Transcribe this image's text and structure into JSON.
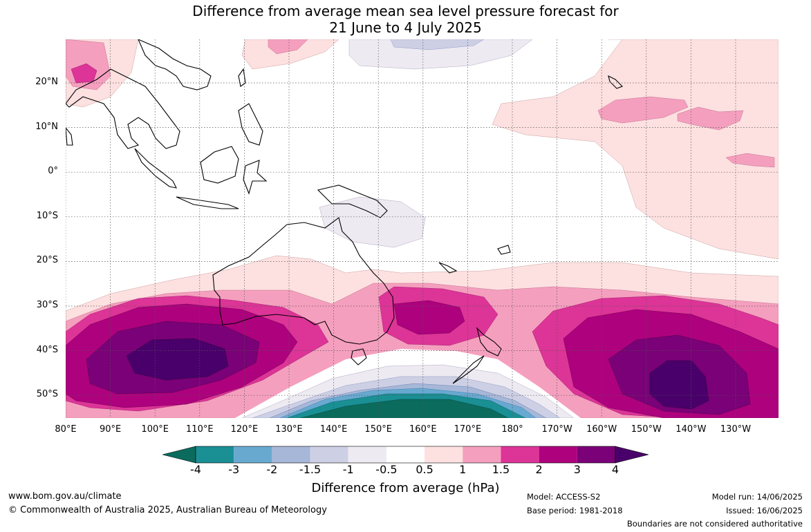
{
  "title": {
    "line1": "Difference from average mean sea level pressure forecast for",
    "line2": "21 June to 4 July 2025"
  },
  "map": {
    "lat_labels": [
      "20°N",
      "10°N",
      "0°",
      "10°S",
      "20°S",
      "30°S",
      "40°S",
      "50°S"
    ],
    "lon_labels": [
      "80°E",
      "90°E",
      "100°E",
      "110°E",
      "120°E",
      "130°E",
      "140°E",
      "150°E",
      "160°E",
      "170°E",
      "180°",
      "170°W",
      "160°W",
      "150°W",
      "140°W",
      "130°W"
    ]
  },
  "legend": {
    "ticks": [
      "-4",
      "-3",
      "-2",
      "-1.5",
      "-1",
      "-0.5",
      "0.5",
      "1",
      "1.5",
      "2",
      "3",
      "4"
    ],
    "colors": [
      "#0b6b5d",
      "#1a8f94",
      "#68a9d0",
      "#a6b7d8",
      "#cdd0e5",
      "#edeaf2",
      "#ffffff",
      "#fde0e0",
      "#f59fbe",
      "#dd3497",
      "#ae017e",
      "#7a0177",
      "#49006a"
    ],
    "label": "Difference from average (hPa)"
  },
  "footer": {
    "website": "www.bom.gov.au/climate",
    "copyright": "© Commonwealth of Australia 2025, Australian Bureau of Meteorology",
    "model": "Model: ACCESS-S2",
    "base_period": "Base period: 1981-2018",
    "model_run": "Model run: 14/06/2025",
    "issued": "Issued: 16/06/2025",
    "disclaimer": "Boundaries are not considered authoritative"
  }
}
